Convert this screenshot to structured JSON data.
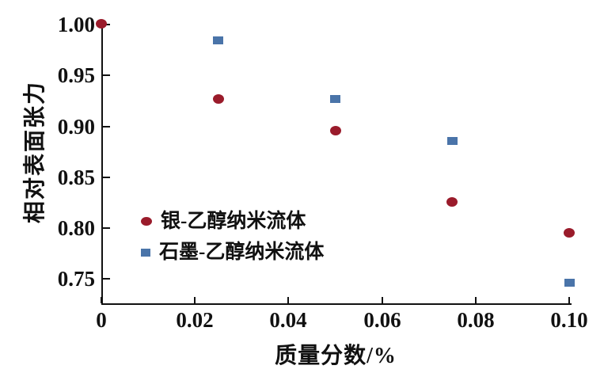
{
  "chart_data": {
    "type": "scatter",
    "title": "",
    "xlabel": "质量分数/%",
    "ylabel": "相对表面张力",
    "xlim": [
      0,
      0.1005
    ],
    "ylim": [
      0.7255,
      1.0
    ],
    "grid": false,
    "legend_position": "inside-lower-left",
    "x_ticks": [
      0,
      0.02,
      0.04,
      0.06,
      0.08,
      0.1
    ],
    "x_tick_labels": [
      "0",
      "0.02",
      "0.04",
      "0.06",
      "0.08",
      "0.10"
    ],
    "y_ticks": [
      1.0,
      0.95,
      0.9,
      0.85,
      0.8,
      0.75
    ],
    "y_tick_labels": [
      "1.00",
      "0.95",
      "0.90",
      "0.85",
      "0.80",
      "0.75"
    ],
    "series": [
      {
        "name": "银-乙醇纳米流体",
        "marker": "circle",
        "color": "#9a1b2b",
        "points": [
          [
            0,
            1.0
          ],
          [
            0.025,
            0.926
          ],
          [
            0.05,
            0.895
          ],
          [
            0.075,
            0.825
          ],
          [
            0.1,
            0.795
          ]
        ]
      },
      {
        "name": "石墨-乙醇纳米流体",
        "marker": "square",
        "color": "#4a74a9",
        "points": [
          [
            0.025,
            0.984
          ],
          [
            0.05,
            0.926
          ],
          [
            0.075,
            0.885
          ],
          [
            0.1,
            0.746
          ]
        ]
      }
    ]
  },
  "colors": {
    "axis": "#111111",
    "background": "#ffffff"
  }
}
